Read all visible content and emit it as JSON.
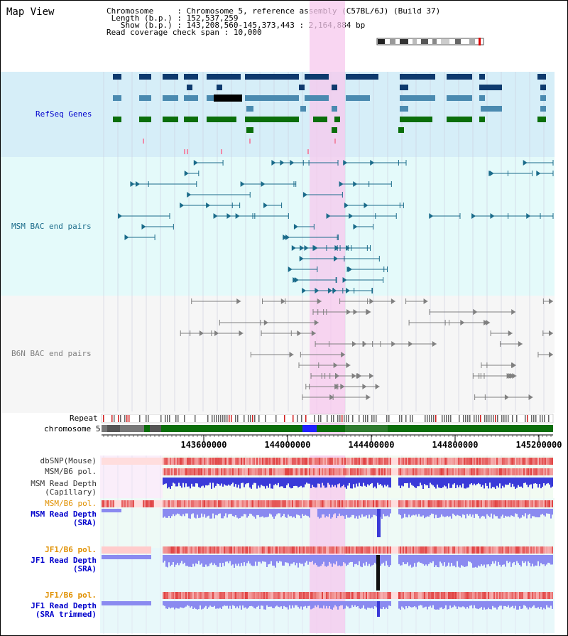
{
  "view": {
    "title": "Map View"
  },
  "info": {
    "chromosome_key": "Chromosome",
    "chromosome_value": "Chromosome 5, reference assembly (C57BL/6J) (Build 37)",
    "length_key": "Length (b.p.)",
    "length_value": "152,537,259",
    "show_key": "Show (b.p.)",
    "show_value": "143,208,560-145,373,443 : 2,164,884 bp",
    "coverage_key": "Read coverage check span",
    "coverage_value": "10,000"
  },
  "tracks": {
    "refseq": "RefSeq Genes",
    "msm_bac": "MSM BAC end pairs",
    "b6n_bac": "B6N BAC end pairs",
    "repeat": "Repeat",
    "chromosome": "chromosome 5",
    "dbsnp": "dbSNP(Mouse)",
    "msm_b6_pol_1": "MSM/B6 pol.",
    "msm_depth_cap_1": "MSM Read Depth",
    "msm_depth_cap_2": "(Capillary)",
    "msm_b6_pol_2": "MSM/B6 pol.",
    "msm_depth_sra_1": "MSM Read Depth",
    "msm_depth_sra_2": "(SRA)",
    "jf1_b6_pol_1": "JF1/B6 pol.",
    "jf1_depth_sra_1": "JF1 Read Depth",
    "jf1_depth_sra_2": "(SRA)",
    "jf1_b6_pol_2": "JF1/B6 pol.",
    "jf1_depth_trim_1": "JF1 Read Depth",
    "jf1_depth_trim_2": "(SRA trimmed)"
  },
  "axis": {
    "ticks": [
      "143600000",
      "144000000",
      "144400000",
      "144800000",
      "145200000"
    ]
  },
  "colors": {
    "refseq_bg": "#d6eef8",
    "msm_bg": "#e4fafa",
    "b6n_bg": "#f2f2f2",
    "highlight": "#f7c8ee",
    "refseq_dark": "#0e3a6e",
    "refseq_mid": "#4a8ab0",
    "refseq_green": "#0a6e0a",
    "msm_pair": "#1a6b8a",
    "b6n_pair": "#808080",
    "label_blue": "#0000cc",
    "label_teal": "#1a6b8a",
    "label_gray": "#808080",
    "label_orange": "#e09000",
    "depth_blue": "#3a3ad8",
    "depth_light": "#8a8af0",
    "pol_red": "#e04040"
  }
}
